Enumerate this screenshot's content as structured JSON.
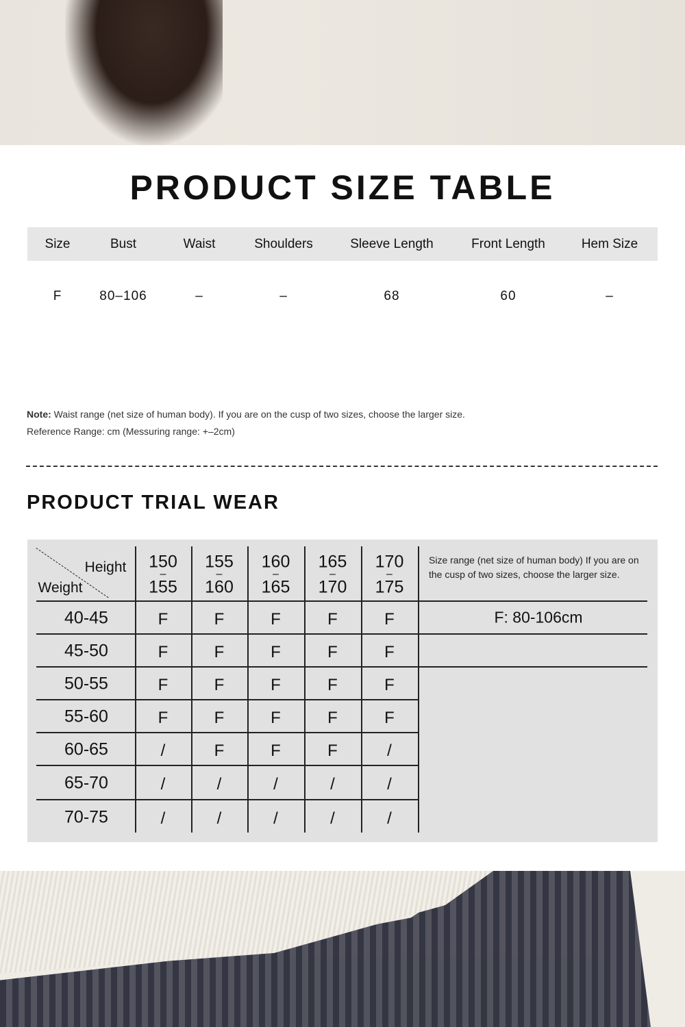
{
  "title": "PRODUCT SIZE TABLE",
  "size_table": {
    "headers": [
      "Size",
      "Bust",
      "Waist",
      "Shoulders",
      "Sleeve Length",
      "Front Length",
      "Hem Size"
    ],
    "rows": [
      [
        "F",
        "80–106",
        "–",
        "–",
        "68",
        "60",
        "–"
      ]
    ]
  },
  "note": {
    "label": "Note:",
    "text": " Waist range (net size of human body). If you are on the cusp of two sizes, choose the larger size.",
    "reference": "Reference Range: cm (Messuring range: +–2cm)"
  },
  "trial": {
    "title": "PRODUCT TRIAL WEAR",
    "height_label": "Height",
    "weight_label": "Weight",
    "heights": [
      [
        "150",
        "155"
      ],
      [
        "155",
        "160"
      ],
      [
        "160",
        "165"
      ],
      [
        "165",
        "170"
      ],
      [
        "170",
        "175"
      ]
    ],
    "weights": [
      "40-45",
      "45-50",
      "50-55",
      "55-60",
      "60-65",
      "65-70",
      "70-75"
    ],
    "grid": [
      [
        "F",
        "F",
        "F",
        "F",
        "F"
      ],
      [
        "F",
        "F",
        "F",
        "F",
        "F"
      ],
      [
        "F",
        "F",
        "F",
        "F",
        "F"
      ],
      [
        "F",
        "F",
        "F",
        "F",
        "F"
      ],
      [
        "/",
        "F",
        "F",
        "F",
        "/"
      ],
      [
        "/",
        "/",
        "/",
        "/",
        "/"
      ],
      [
        "/",
        "/",
        "/",
        "/",
        "/"
      ]
    ],
    "side_note": "Size range (net size of human body) If you are on the cusp of two sizes, choose the larger size.",
    "size_range": "F: 80-106cm"
  }
}
